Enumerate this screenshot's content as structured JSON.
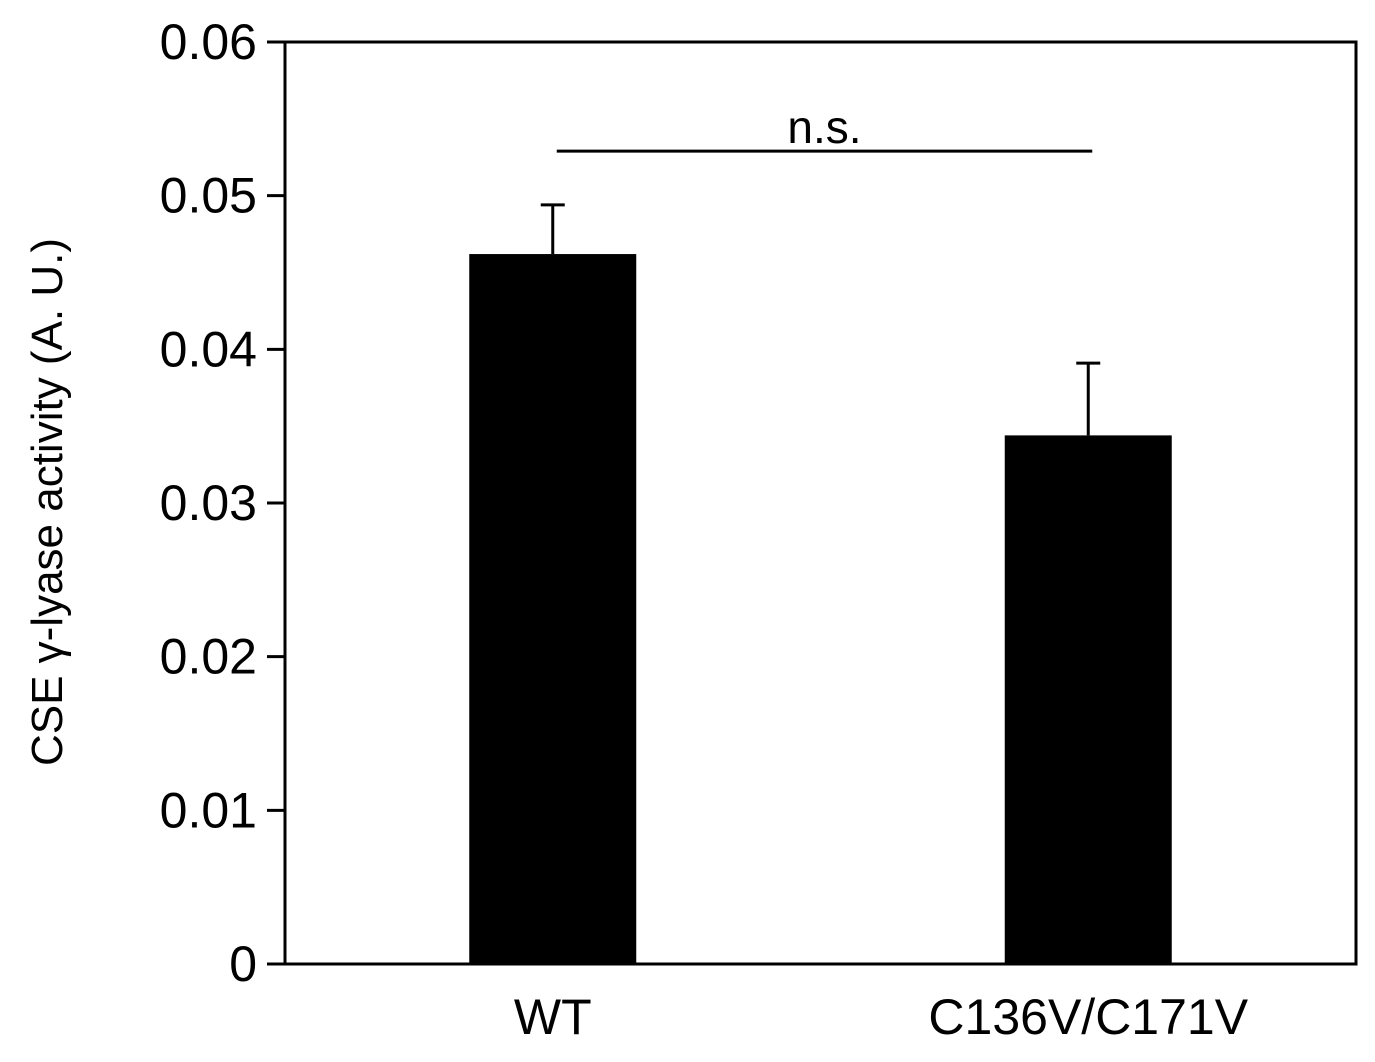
{
  "chart_data": {
    "type": "bar",
    "title": "",
    "xlabel": "",
    "ylabel": "CSE γ-lyase  activity (A. U.)",
    "ylim": [
      0,
      0.06
    ],
    "yticks": [
      0,
      0.01,
      0.02,
      0.03,
      0.04,
      0.05,
      0.06
    ],
    "ytick_labels": [
      "0",
      "0.01",
      "0.02",
      "0.03",
      "0.04",
      "0.05",
      "0.06"
    ],
    "categories": [
      "WT",
      "C136V/C171V"
    ],
    "values": [
      0.0462,
      0.0344
    ],
    "errors": [
      0.0032,
      0.0047
    ],
    "bar_color": "#000000",
    "grid": false,
    "legend": "none",
    "annotation": {
      "text": "n.s.",
      "between": [
        "WT",
        "C136V/C171V"
      ],
      "y": 0.0529
    }
  }
}
